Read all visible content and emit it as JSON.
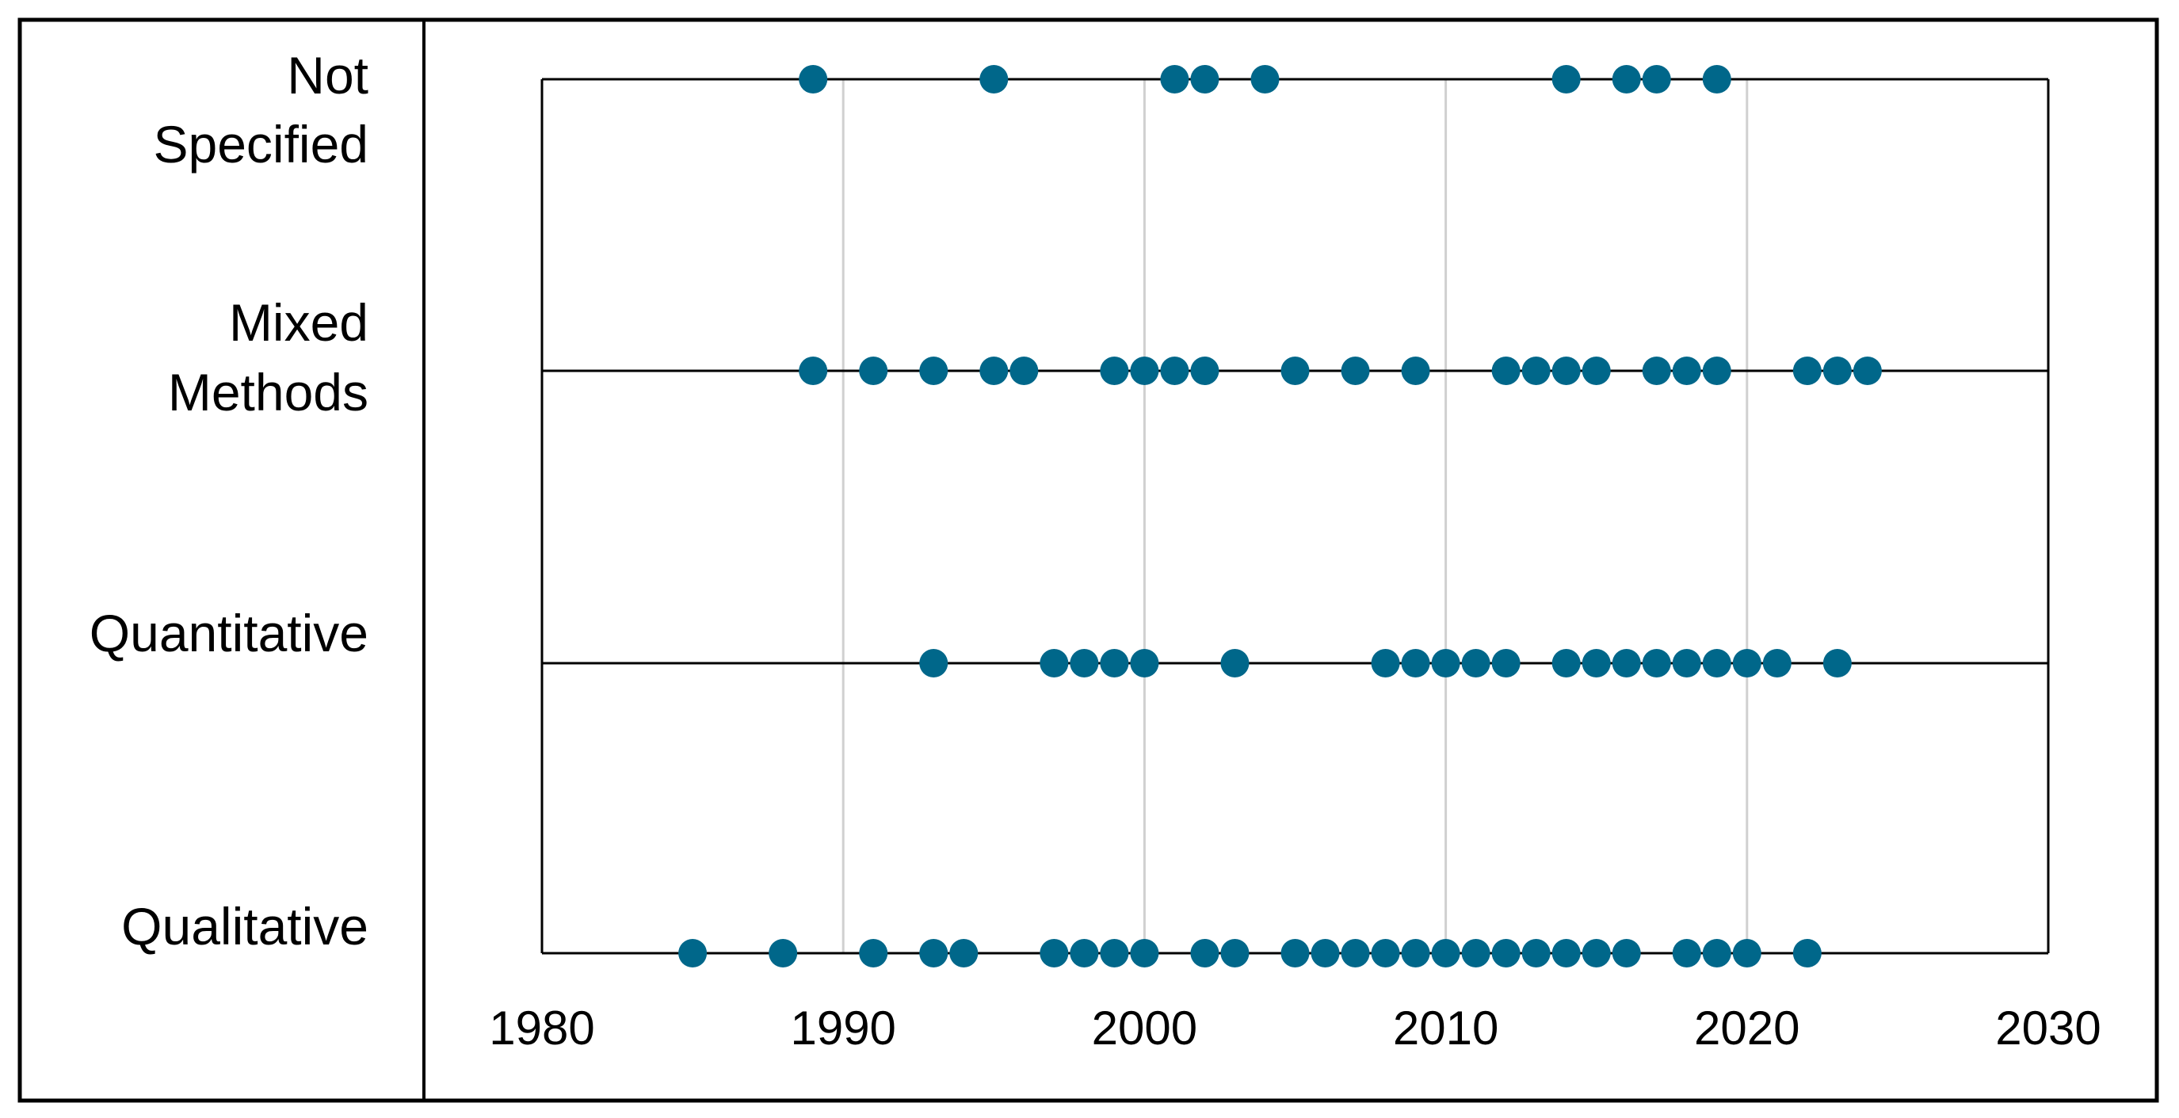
{
  "chart_data": {
    "type": "scatter",
    "title": "",
    "xlabel": "",
    "ylabel": "",
    "xlim": [
      1980,
      2030
    ],
    "x_ticks": [
      "1980",
      "1990",
      "2000",
      "2010",
      "2020",
      "2030"
    ],
    "grid": "vertical",
    "marker_color": "#00678a",
    "categories": [
      {
        "label_lines": [
          "Not",
          "Specified"
        ],
        "years": [
          1989,
          1995,
          2001,
          2002,
          2004,
          2014,
          2016,
          2017,
          2019
        ]
      },
      {
        "label_lines": [
          "Mixed",
          "Methods"
        ],
        "years": [
          1989,
          1991,
          1993,
          1995,
          1996,
          1999,
          2000,
          2001,
          2002,
          2005,
          2007,
          2009,
          2012,
          2013,
          2014,
          2015,
          2017,
          2018,
          2019,
          2022,
          2023,
          2024
        ]
      },
      {
        "label_lines": [
          "Quantitative"
        ],
        "years": [
          1993,
          1997,
          1998,
          1999,
          2000,
          2003,
          2008,
          2009,
          2010,
          2011,
          2012,
          2014,
          2015,
          2016,
          2017,
          2018,
          2019,
          2020,
          2021,
          2023
        ]
      },
      {
        "label_lines": [
          "Qualitative"
        ],
        "years": [
          1985,
          1988,
          1991,
          1993,
          1994,
          1997,
          1998,
          1999,
          2000,
          2002,
          2003,
          2005,
          2006,
          2007,
          2008,
          2009,
          2010,
          2011,
          2012,
          2013,
          2014,
          2015,
          2016,
          2018,
          2019,
          2020,
          2022
        ]
      }
    ]
  }
}
